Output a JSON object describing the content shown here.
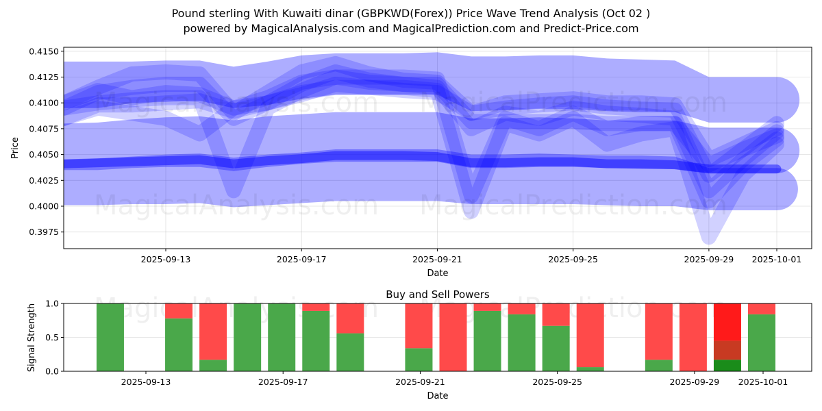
{
  "header": {
    "title": "Pound sterling With Kuwaiti dinar (GBPKWD(Forex)) Price Wave Trend Analysis (Oct 02 )",
    "subtitle": "powered by MagicalAnalysis.com and MagicalPrediction.com and Predict-Price.com"
  },
  "watermarks": [
    "MagicalAnalysis.com",
    "MagicalPrediction.com"
  ],
  "colors": {
    "band": "#0000ff",
    "buy": "#4aa84a",
    "sell": "#ff4a4a",
    "sell_strong": "#ff1a1a",
    "buy_strong": "#1a8c1a",
    "mixed": "#c83a22"
  },
  "chart_data": [
    {
      "type": "area",
      "title": "",
      "xlabel": "Date",
      "ylabel": "Price",
      "ylim": [
        0.39575,
        0.4154
      ],
      "xlim": [
        "2025-09-09",
        "2025-10-02"
      ],
      "yticks": [
        "0.3975",
        "0.4000",
        "0.4025",
        "0.4050",
        "0.4075",
        "0.4100",
        "0.4125",
        "0.4150"
      ],
      "xticks": [
        "2025-09-13",
        "2025-09-17",
        "2025-09-21",
        "2025-09-25",
        "2025-09-29",
        "2025-10-01"
      ],
      "grid": true,
      "x": [
        "2025-09-10",
        "2025-09-11",
        "2025-09-12",
        "2025-09-13",
        "2025-09-14",
        "2025-09-15",
        "2025-09-16",
        "2025-09-17",
        "2025-09-18",
        "2025-09-19",
        "2025-09-20",
        "2025-09-21",
        "2025-09-22",
        "2025-09-23",
        "2025-09-24",
        "2025-09-25",
        "2025-09-26",
        "2025-09-27",
        "2025-09-28",
        "2025-09-29",
        "2025-09-30",
        "2025-10-01"
      ],
      "series": [
        {
          "name": "upper wide band",
          "lower": [
            0.4095,
            0.4095,
            0.41,
            0.4101,
            0.4102,
            0.4095,
            0.4098,
            0.4104,
            0.4108,
            0.4108,
            0.4108,
            0.4108,
            0.4092,
            0.4093,
            0.4094,
            0.4094,
            0.4092,
            0.4091,
            0.4091,
            0.4081,
            0.4081,
            0.4081
          ],
          "upper": [
            0.414,
            0.414,
            0.414,
            0.4141,
            0.4141,
            0.4135,
            0.414,
            0.4146,
            0.4148,
            0.4148,
            0.4148,
            0.4149,
            0.4145,
            0.4145,
            0.4146,
            0.4146,
            0.4143,
            0.4142,
            0.4141,
            0.4125,
            0.4125,
            0.4125
          ]
        },
        {
          "name": "middle wide band",
          "lower": [
            0.4035,
            0.4035,
            0.4037,
            0.4038,
            0.4038,
            0.4034,
            0.4038,
            0.4041,
            0.4043,
            0.4043,
            0.4043,
            0.4043,
            0.4037,
            0.4037,
            0.4038,
            0.4038,
            0.4037,
            0.4036,
            0.4036,
            0.4032,
            0.4032,
            0.4032
          ],
          "upper": [
            0.408,
            0.4081,
            0.4084,
            0.4086,
            0.4087,
            0.4083,
            0.4087,
            0.4089,
            0.4091,
            0.4091,
            0.4091,
            0.4091,
            0.4085,
            0.4085,
            0.4086,
            0.4085,
            0.4083,
            0.4083,
            0.4083,
            0.4076,
            0.4076,
            0.4076
          ]
        },
        {
          "name": "lower wide band",
          "lower": [
            0.4001,
            0.4001,
            0.4002,
            0.4002,
            0.4003,
            0.3999,
            0.4001,
            0.4003,
            0.4005,
            0.4005,
            0.4005,
            0.4005,
            0.4002,
            0.4002,
            0.4002,
            0.4002,
            0.4001,
            0.4,
            0.4,
            0.3996,
            0.3996,
            0.3996
          ],
          "upper": [
            0.4045,
            0.4046,
            0.4048,
            0.405,
            0.4051,
            0.4047,
            0.405,
            0.4052,
            0.4055,
            0.4055,
            0.4055,
            0.4055,
            0.405,
            0.405,
            0.4051,
            0.405,
            0.4049,
            0.4049,
            0.4048,
            0.4037,
            0.4037,
            0.4037
          ]
        },
        {
          "name": "trend line",
          "values": [
            0.4041,
            0.4042,
            0.4043,
            0.4044,
            0.4045,
            0.4041,
            0.4044,
            0.4046,
            0.4049,
            0.4049,
            0.4049,
            0.4048,
            0.4042,
            0.4042,
            0.4043,
            0.4043,
            0.4041,
            0.4041,
            0.404,
            0.4036,
            0.4036,
            0.4036
          ]
        },
        {
          "name": "wave 1",
          "values": [
            0.41,
            0.4115,
            0.4128,
            0.413,
            0.4128,
            0.409,
            0.411,
            0.413,
            0.4138,
            0.4128,
            0.4122,
            0.412,
            0.409,
            0.4095,
            0.4098,
            0.41,
            0.4096,
            0.4094,
            0.4093,
            0.403,
            0.4055,
            0.408
          ]
        },
        {
          "name": "wave 2",
          "values": [
            0.4095,
            0.411,
            0.4115,
            0.4118,
            0.4118,
            0.4085,
            0.41,
            0.4118,
            0.413,
            0.4122,
            0.4118,
            0.4115,
            0.4075,
            0.409,
            0.4085,
            0.4095,
            0.409,
            0.4088,
            0.4085,
            0.4015,
            0.4045,
            0.4072
          ]
        },
        {
          "name": "wave 3",
          "values": [
            0.41,
            0.4112,
            0.4105,
            0.411,
            0.4108,
            0.4095,
            0.41,
            0.4108,
            0.4118,
            0.4115,
            0.4112,
            0.411,
            0.409,
            0.41,
            0.4102,
            0.4104,
            0.41,
            0.41,
            0.4098,
            0.4045,
            0.406,
            0.4075
          ]
        },
        {
          "name": "wave 4",
          "values": [
            0.4085,
            0.4095,
            0.409,
            0.4085,
            0.407,
            0.4095,
            0.4105,
            0.412,
            0.4125,
            0.412,
            0.4118,
            0.4118,
            0.4082,
            0.4082,
            0.4082,
            0.4082,
            0.408,
            0.408,
            0.408,
            0.404,
            0.4055,
            0.4068
          ]
        },
        {
          "name": "wave 5",
          "values": [
            0.4095,
            0.41,
            0.4103,
            0.4105,
            0.4105,
            0.4015,
            0.4095,
            0.4112,
            0.4125,
            0.4125,
            0.4125,
            0.4123,
            0.401,
            0.4085,
            0.4075,
            0.409,
            0.4075,
            0.408,
            0.408,
            0.4005,
            0.404,
            0.4065
          ]
        },
        {
          "name": "wave 6",
          "values": [
            0.4085,
            0.4098,
            0.4098,
            0.41,
            0.4102,
            0.4092,
            0.41,
            0.411,
            0.4115,
            0.4115,
            0.4115,
            0.4112,
            0.3995,
            0.408,
            0.407,
            0.4085,
            0.406,
            0.407,
            0.4075,
            0.397,
            0.403,
            0.406
          ]
        }
      ]
    },
    {
      "type": "bar",
      "title": "Buy and Sell Powers",
      "xlabel": "Date",
      "ylabel": "Signal Strength",
      "ylim": [
        0.0,
        1.0
      ],
      "yticks": [
        "0.0",
        "0.5",
        "1.0"
      ],
      "xticks": [
        "2025-09-13",
        "2025-09-17",
        "2025-09-21",
        "2025-09-25",
        "2025-09-29",
        "2025-10-01"
      ],
      "xlim": [
        "2025-09-10",
        "2025-10-02"
      ],
      "grid": true,
      "categories": [
        "2025-09-12",
        "2025-09-14",
        "2025-09-15",
        "2025-09-16",
        "2025-09-17",
        "2025-09-18",
        "2025-09-19",
        "2025-09-21",
        "2025-09-22",
        "2025-09-23",
        "2025-09-24",
        "2025-09-25",
        "2025-09-26",
        "2025-09-28",
        "2025-09-29",
        "2025-09-30",
        "2025-10-01"
      ],
      "series": [
        {
          "name": "Buy",
          "values": [
            1.0,
            0.78,
            0.17,
            1.0,
            1.0,
            0.89,
            0.56,
            0.34,
            0.0,
            0.89,
            0.84,
            0.67,
            0.06,
            0.17,
            0.0,
            0.17,
            0.84
          ]
        },
        {
          "name": "Sell",
          "values": [
            0.0,
            0.22,
            0.83,
            0.0,
            0.0,
            0.11,
            0.44,
            0.66,
            1.0,
            0.11,
            0.16,
            0.33,
            0.94,
            0.83,
            1.0,
            0.83,
            0.16
          ]
        }
      ],
      "highlight": {
        "date": "2025-09-30",
        "overlap_top": 0.45
      }
    }
  ]
}
